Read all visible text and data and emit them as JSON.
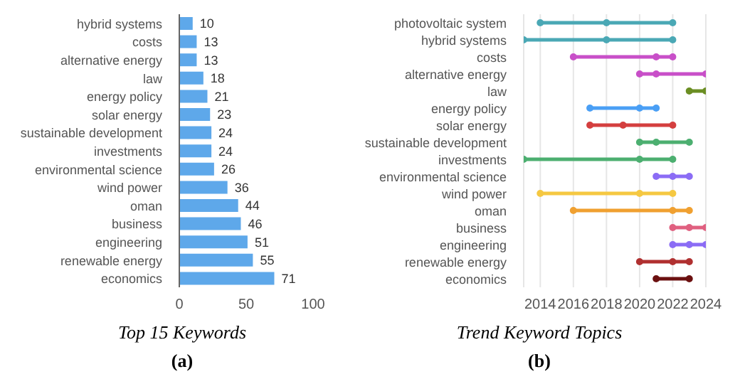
{
  "chart_data": [
    {
      "type": "bar",
      "orientation": "horizontal",
      "title": "Top 15 Keywords",
      "annotations": [
        "(a)"
      ],
      "categories": [
        "hybrid systems",
        "costs",
        "alternative energy",
        "law",
        "energy policy",
        "solar energy",
        "sustainable development",
        "investments",
        "environmental science",
        "wind power",
        "oman",
        "business",
        "engineering",
        "renewable energy",
        "economics"
      ],
      "values": [
        10,
        13,
        13,
        18,
        21,
        23,
        24,
        24,
        26,
        36,
        44,
        46,
        51,
        55,
        71
      ],
      "color": "#5ea8ea",
      "xlim": [
        0,
        100
      ],
      "xticks": [
        0,
        50,
        100
      ],
      "data_labels": true,
      "grid": false,
      "legend": false
    },
    {
      "type": "bar",
      "orientation": "horizontal",
      "title": "Trend Keyword Topics",
      "annotations": [
        "(b)"
      ],
      "categories": [
        "photovoltaic system",
        "hybrid systems",
        "costs",
        "alternative energy",
        "law",
        "energy policy",
        "solar energy",
        "sustainable development",
        "investments",
        "environmental science",
        "wind power",
        "oman",
        "business",
        "engineering",
        "renewable energy",
        "economics"
      ],
      "series": [
        {
          "base": [
            2014,
            2013,
            2016,
            2020,
            2023,
            2017,
            2017,
            2020,
            2013,
            2021,
            2014,
            2016,
            2022,
            2022,
            2020,
            2021
          ],
          "values": [
            8,
            9,
            6,
            4,
            1,
            4,
            5,
            3,
            9,
            2,
            8,
            7,
            2,
            2,
            3,
            2
          ],
          "colors": [
            "#4aa8b5",
            "#4aa8b5",
            "#c84fc8",
            "#c84fc8",
            "#6b8e23",
            "#4a9ff5",
            "#d43f3f",
            "#4caf70",
            "#4caf70",
            "#8b6cf5",
            "#f5c842",
            "#f0a030",
            "#e06080",
            "#8b6cf5",
            "#b03030",
            "#6b1010"
          ]
        },
        {
          "type": "scatter",
          "values": [
            2014,
            2013,
            2016,
            2020,
            2023,
            2017,
            2017,
            2020,
            2013,
            2021,
            2014,
            2016,
            2022,
            2022,
            2020,
            2021
          ],
          "colors": [
            "#4aa8b5",
            "#4aa8b5",
            "#c84fc8",
            "#c84fc8",
            "#6b8e23",
            "#4a9ff5",
            "#d43f3f",
            "#4caf70",
            "#4caf70",
            "#8b6cf5",
            "#f5c842",
            "#f0a030",
            "#e06080",
            "#8b6cf5",
            "#b03030",
            "#6b1010"
          ]
        },
        {
          "type": "scatter",
          "values": [
            2018,
            2018,
            2021,
            2021,
            null,
            2020,
            2019,
            2021,
            2020,
            2022,
            2020,
            2022,
            2023,
            2023,
            2022,
            null
          ],
          "colors": [
            "#4aa8b5",
            "#4aa8b5",
            "#c84fc8",
            "#c84fc8",
            null,
            "#4a9ff5",
            "#d43f3f",
            "#4caf70",
            "#4caf70",
            "#8b6cf5",
            "#f5c842",
            "#f0a030",
            "#e06080",
            "#8b6cf5",
            "#b03030",
            null
          ]
        },
        {
          "type": "scatter",
          "values": [
            2022,
            2022,
            2022,
            2024,
            2024,
            2021,
            2022,
            2023,
            2022,
            2023,
            2022,
            2023,
            2024,
            2024,
            2023,
            2023
          ],
          "colors": [
            "#4aa8b5",
            "#4aa8b5",
            "#c84fc8",
            "#c84fc8",
            "#6b8e23",
            "#4a9ff5",
            "#d43f3f",
            "#4caf70",
            "#4caf70",
            "#8b6cf5",
            "#f5c842",
            "#f0a030",
            "#e06080",
            "#8b6cf5",
            "#b03030",
            "#6b1010"
          ]
        }
      ],
      "xlim": [
        2013,
        2024
      ],
      "xticks": [
        2014,
        2016,
        2018,
        2020,
        2022,
        2024
      ],
      "grid": "x",
      "legend": false
    }
  ]
}
